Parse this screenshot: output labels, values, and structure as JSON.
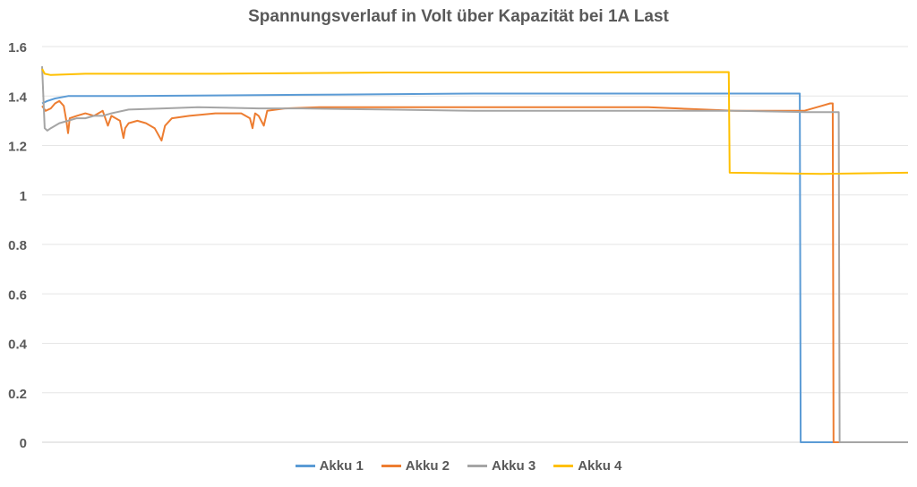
{
  "chart_data": {
    "type": "line",
    "title": "Spannungsverlauf in Volt über Kapazität bei 1A Last",
    "xlabel": "",
    "ylabel": "",
    "ylim": [
      0,
      1.6
    ],
    "y_ticks": [
      "0",
      "0.2",
      "0.4",
      "0.6",
      "0.8",
      "1",
      "1.2",
      "1.4",
      "1.6"
    ],
    "grid": true,
    "legend_position": "bottom",
    "x_range": [
      0,
      100
    ],
    "series": [
      {
        "name": "Akku 1",
        "color": "#5B9BD5",
        "points": [
          [
            0,
            1.37
          ],
          [
            0.6,
            1.38
          ],
          [
            1.5,
            1.39
          ],
          [
            3,
            1.4
          ],
          [
            10,
            1.4
          ],
          [
            30,
            1.405
          ],
          [
            50,
            1.41
          ],
          [
            70,
            1.41
          ],
          [
            87.5,
            1.41
          ],
          [
            87.6,
            0
          ],
          [
            100,
            0
          ]
        ]
      },
      {
        "name": "Akku 2",
        "color": "#ED7D31",
        "points": [
          [
            0,
            1.36
          ],
          [
            0.4,
            1.34
          ],
          [
            1,
            1.35
          ],
          [
            1.5,
            1.37
          ],
          [
            2,
            1.38
          ],
          [
            2.5,
            1.36
          ],
          [
            2.8,
            1.3
          ],
          [
            3,
            1.25
          ],
          [
            3.2,
            1.31
          ],
          [
            4,
            1.32
          ],
          [
            5,
            1.33
          ],
          [
            6,
            1.32
          ],
          [
            7,
            1.34
          ],
          [
            7.4,
            1.3
          ],
          [
            7.6,
            1.28
          ],
          [
            8,
            1.32
          ],
          [
            9,
            1.3
          ],
          [
            9.4,
            1.23
          ],
          [
            9.6,
            1.27
          ],
          [
            10,
            1.29
          ],
          [
            11,
            1.3
          ],
          [
            12,
            1.29
          ],
          [
            13,
            1.27
          ],
          [
            13.8,
            1.22
          ],
          [
            14.2,
            1.28
          ],
          [
            15,
            1.31
          ],
          [
            17,
            1.32
          ],
          [
            20,
            1.33
          ],
          [
            23,
            1.33
          ],
          [
            24,
            1.31
          ],
          [
            24.3,
            1.27
          ],
          [
            24.6,
            1.33
          ],
          [
            25,
            1.32
          ],
          [
            25.6,
            1.28
          ],
          [
            26,
            1.34
          ],
          [
            28,
            1.35
          ],
          [
            32,
            1.355
          ],
          [
            50,
            1.355
          ],
          [
            70,
            1.355
          ],
          [
            80,
            1.34
          ],
          [
            88,
            1.34
          ],
          [
            90,
            1.36
          ],
          [
            91,
            1.37
          ],
          [
            91.3,
            1.37
          ],
          [
            91.4,
            0
          ],
          [
            100,
            0
          ]
        ]
      },
      {
        "name": "Akku 3",
        "color": "#A5A5A5",
        "points": [
          [
            0,
            1.52
          ],
          [
            0.3,
            1.27
          ],
          [
            0.6,
            1.26
          ],
          [
            1,
            1.27
          ],
          [
            2,
            1.29
          ],
          [
            3,
            1.3
          ],
          [
            4,
            1.31
          ],
          [
            5,
            1.31
          ],
          [
            6,
            1.32
          ],
          [
            7,
            1.32
          ],
          [
            8,
            1.33
          ],
          [
            10,
            1.345
          ],
          [
            14,
            1.35
          ],
          [
            18,
            1.355
          ],
          [
            25,
            1.35
          ],
          [
            30,
            1.35
          ],
          [
            40,
            1.345
          ],
          [
            50,
            1.34
          ],
          [
            60,
            1.34
          ],
          [
            70,
            1.34
          ],
          [
            80,
            1.34
          ],
          [
            88,
            1.335
          ],
          [
            92,
            1.335
          ],
          [
            92.1,
            0
          ],
          [
            100,
            0
          ]
        ]
      },
      {
        "name": "Akku 4",
        "color": "#FFC000",
        "points": [
          [
            0,
            1.51
          ],
          [
            0.3,
            1.49
          ],
          [
            1,
            1.485
          ],
          [
            5,
            1.49
          ],
          [
            20,
            1.49
          ],
          [
            40,
            1.495
          ],
          [
            60,
            1.495
          ],
          [
            79.3,
            1.497
          ],
          [
            79.4,
            1.09
          ],
          [
            90,
            1.085
          ],
          [
            100,
            1.09
          ]
        ]
      }
    ]
  }
}
